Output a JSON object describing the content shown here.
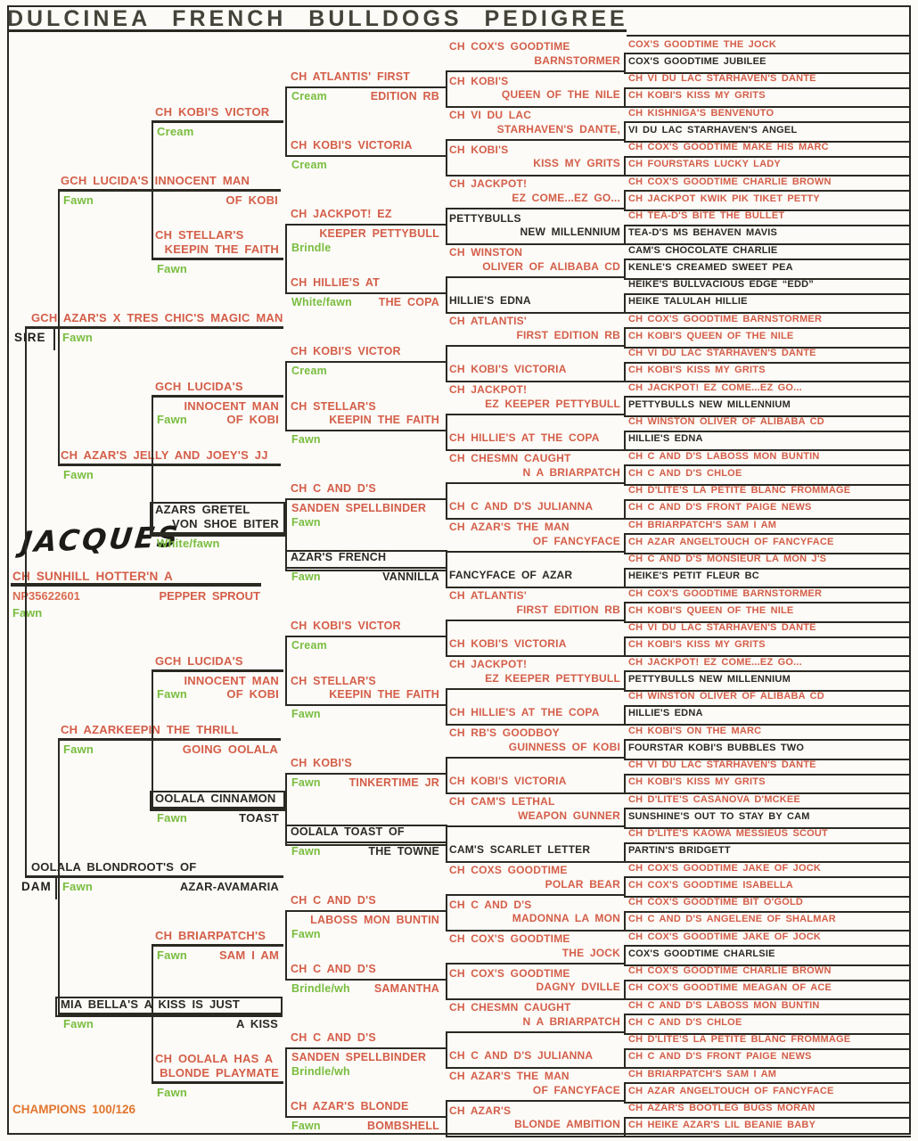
{
  "title": "DULCINEA FRENCH BULLDOGS PEDIGREE",
  "labels": {
    "sire": "SIRE",
    "dam": "DAM"
  },
  "subject": {
    "handwritten": "JACQUES",
    "name": "CH SUNHILL HOTTER'N A",
    "name2": "PEPPER SPROUT",
    "reg": "NP35622601",
    "color": "Fawn",
    "champions": "CHAMPIONS 100/126"
  },
  "gen1": [
    {
      "above": [
        "GCH AZAR'S X TRES CHIC'S MAGIC MAN"
      ],
      "below": [
        [
          {
            "t": "Fawn",
            "g": 1
          }
        ]
      ]
    },
    {
      "above": [
        "OOLALA BLONDROOT'S OF"
      ],
      "black": 1,
      "below": [
        [
          {
            "t": "Fawn",
            "g": 1
          },
          {
            "t": "AZAR-AVAMARIA",
            "r": 1,
            "k": 1
          }
        ]
      ]
    }
  ],
  "gen2": [
    {
      "above": [
        "GCH LUCIDA'S INNOCENT MAN"
      ],
      "below": [
        [
          {
            "t": "Fawn",
            "g": 1
          },
          {
            "t": "OF KOBI",
            "r": 1
          }
        ]
      ]
    },
    {
      "above": [
        "CH AZAR'S JELLY AND JOEY'S JJ"
      ],
      "below": [
        [
          {
            "t": "Fawn",
            "g": 1
          }
        ]
      ]
    },
    {
      "above": [
        "CH AZARKEEPIN THE THRILL"
      ],
      "below": [
        [
          {
            "t": "Fawn",
            "g": 1
          },
          {
            "t": "GOING OOLALA",
            "r": 1
          }
        ]
      ]
    },
    {
      "above": [
        "MIA BELLA'S A KISS IS JUST"
      ],
      "black": 1,
      "boxed": 1,
      "below": [
        [
          {
            "t": "Fawn",
            "g": 1
          },
          {
            "t": "A KISS",
            "r": 1,
            "k": 1
          }
        ]
      ]
    }
  ],
  "gen3": [
    {
      "above": [
        "CH KOBI'S VICTOR"
      ],
      "below": [
        [
          {
            "t": "Cream",
            "g": 1
          }
        ]
      ]
    },
    {
      "above": [
        "CH STELLAR'S",
        "KEEPIN THE FAITH"
      ],
      "below": [
        [
          {
            "t": "Fawn",
            "g": 1
          }
        ]
      ]
    },
    {
      "above": [
        "GCH LUCIDA'S"
      ],
      "below": [
        [
          {
            "t": "INNOCENT MAN",
            "r": 1
          }
        ],
        [
          {
            "t": "Fawn",
            "g": 1
          },
          {
            "t": "OF KOBI",
            "r": 1
          }
        ]
      ]
    },
    {
      "above": [
        "AZARS GRETEL",
        "VON SHOE BITER"
      ],
      "black": 1,
      "boxed": 1,
      "below": [
        [
          {
            "t": "White/fawn",
            "g": 1
          }
        ]
      ]
    },
    {
      "above": [
        "GCH LUCIDA'S"
      ],
      "below": [
        [
          {
            "t": "INNOCENT MAN",
            "r": 1
          }
        ],
        [
          {
            "t": "Fawn",
            "g": 1
          },
          {
            "t": "OF KOBI",
            "r": 1
          }
        ]
      ]
    },
    {
      "above": [
        "OOLALA CINNAMON"
      ],
      "black": 1,
      "boxed": 1,
      "below": [
        [
          {
            "t": "Fawn",
            "g": 1
          },
          {
            "t": "TOAST",
            "r": 1,
            "k": 1
          }
        ]
      ]
    },
    {
      "above": [
        "CH BRIARPATCH'S"
      ],
      "below": [
        [
          {
            "t": "Fawn",
            "g": 1
          },
          {
            "t": "SAM I AM",
            "r": 1
          }
        ]
      ]
    },
    {
      "above": [
        "CH OOLALA HAS A",
        "BLONDE PLAYMATE"
      ],
      "below": [
        [
          {
            "t": "Fawn",
            "g": 1
          }
        ]
      ]
    }
  ],
  "gen4": [
    {
      "above": [
        "CH ATLANTIS' FIRST"
      ],
      "below": [
        [
          {
            "t": "Cream",
            "g": 1
          },
          {
            "t": "EDITION RB",
            "r": 1
          }
        ]
      ]
    },
    {
      "above": [
        "CH KOBI'S VICTORIA"
      ],
      "below": [
        [
          {
            "t": "Cream",
            "g": 1
          }
        ]
      ]
    },
    {
      "above": [
        "CH JACKPOT! EZ"
      ],
      "below": [
        [
          {
            "t": "KEEPER PETTYBULL",
            "r": 1
          }
        ],
        [
          {
            "t": "Brindle",
            "g": 1
          }
        ]
      ]
    },
    {
      "above": [
        "CH HILLIE'S AT"
      ],
      "below": [
        [
          {
            "t": "White/fawn",
            "g": 1
          },
          {
            "t": "THE COPA",
            "r": 1
          }
        ]
      ]
    },
    {
      "above": [
        "CH KOBI'S VICTOR"
      ],
      "below": [
        [
          {
            "t": "Cream",
            "g": 1
          }
        ]
      ]
    },
    {
      "above": [
        "CH STELLAR'S",
        "KEEPIN THE FAITH"
      ],
      "below": [
        [
          {
            "t": "Fawn",
            "g": 1
          }
        ]
      ]
    },
    {
      "above": [
        "CH C AND D'S"
      ],
      "below": [
        [
          {
            "t": "SANDEN SPELLBINDER"
          }
        ],
        [
          {
            "t": "Fawn",
            "g": 1
          }
        ]
      ]
    },
    {
      "above": [
        "AZAR'S FRENCH"
      ],
      "black": 1,
      "boxed": 1,
      "below": [
        [
          {
            "t": "Fawn",
            "g": 1
          },
          {
            "t": "VANNILLA",
            "r": 1,
            "k": 1
          }
        ]
      ]
    },
    {
      "above": [
        "CH KOBI'S VICTOR"
      ],
      "below": [
        [
          {
            "t": "Cream",
            "g": 1
          }
        ]
      ]
    },
    {
      "above": [
        "CH STELLAR'S",
        "KEEPIN THE FAITH"
      ],
      "below": [
        [
          {
            "t": "Fawn",
            "g": 1
          }
        ]
      ]
    },
    {
      "above": [
        "CH KOBI'S"
      ],
      "below": [
        [
          {
            "t": "Fawn",
            "g": 1
          },
          {
            "t": "TINKERTIME JR",
            "r": 1
          }
        ]
      ]
    },
    {
      "above": [
        "OOLALA TOAST OF"
      ],
      "black": 1,
      "boxed": 1,
      "below": [
        [
          {
            "t": "Fawn",
            "g": 1
          },
          {
            "t": "THE TOWNE",
            "r": 1,
            "k": 1
          }
        ]
      ]
    },
    {
      "above": [
        "CH C AND D'S"
      ],
      "below": [
        [
          {
            "t": "LABOSS MON BUNTIN",
            "r": 1
          }
        ],
        [
          {
            "t": "Fawn",
            "g": 1
          }
        ]
      ]
    },
    {
      "above": [
        "CH C AND D'S"
      ],
      "below": [
        [
          {
            "t": "Brindle/wh",
            "g": 1
          },
          {
            "t": "SAMANTHA",
            "r": 1
          }
        ]
      ]
    },
    {
      "above": [
        "CH C AND D'S"
      ],
      "below": [
        [
          {
            "t": "SANDEN SPELLBINDER"
          }
        ],
        [
          {
            "t": "Brindle/wh",
            "g": 1
          }
        ]
      ]
    },
    {
      "above": [
        "CH AZAR'S BLONDE"
      ],
      "below": [
        [
          {
            "t": "Fawn",
            "g": 1
          },
          {
            "t": "BOMBSHELL",
            "r": 1
          }
        ]
      ]
    }
  ],
  "gen5": [
    {
      "l1": "CH COX'S GOODTIME",
      "l2": "BARNSTORMER"
    },
    {
      "l1": "CH KOBI'S",
      "l2": "QUEEN OF THE NILE"
    },
    {
      "l1": "CH VI DU LAC",
      "l2": "STARHAVEN'S DANTE,"
    },
    {
      "l1": "CH KOBI'S",
      "l2": "KISS MY GRITS"
    },
    {
      "l1": "CH JACKPOT!",
      "l2": "EZ COME...EZ GO..."
    },
    {
      "l1": "PETTYBULLS",
      "l2": "NEW MILLENNIUM",
      "black": 1
    },
    {
      "l1": "CH WINSTON",
      "l2": "OLIVER OF ALIBABA CD"
    },
    {
      "l1": "HILLIE'S EDNA",
      "black": 1
    },
    {
      "l1": "CH ATLANTIS'",
      "l2": "FIRST EDITION RB"
    },
    {
      "l1": "CH KOBI'S VICTORIA"
    },
    {
      "l1": "CH JACKPOT!",
      "l2": "EZ KEEPER PETTYBULL"
    },
    {
      "l1": "CH HILLIE'S AT THE COPA"
    },
    {
      "l1": "CH CHESMN CAUGHT",
      "l2": "N A BRIARPATCH"
    },
    {
      "l1": "CH C AND D'S JULIANNA"
    },
    {
      "l1": "CH AZAR'S THE MAN",
      "l2": "OF FANCYFACE"
    },
    {
      "l1": "FANCYFACE OF AZAR",
      "black": 1
    },
    {
      "l1": "CH ATLANTIS'",
      "l2": "FIRST EDITION RB"
    },
    {
      "l1": "CH KOBI'S VICTORIA"
    },
    {
      "l1": "CH JACKPOT!",
      "l2": "EZ KEEPER PETTYBULL"
    },
    {
      "l1": "CH HILLIE'S AT THE COPA"
    },
    {
      "l1": "CH RB'S GOODBOY",
      "l2": "GUINNESS OF KOBI"
    },
    {
      "l1": "CH KOBI'S VICTORIA"
    },
    {
      "l1": "CH CAM'S LETHAL",
      "l2": "WEAPON GUNNER"
    },
    {
      "l1": "CAM'S SCARLET LETTER",
      "black": 1
    },
    {
      "l1": "CH COXS GOODTIME",
      "l2": "POLAR BEAR"
    },
    {
      "l1": "CH C AND D'S",
      "l2": "MADONNA LA MON"
    },
    {
      "l1": "CH COX'S GOODTIME",
      "l2": "THE JOCK"
    },
    {
      "l1": "CH COX'S GOODTIME",
      "l2": "DAGNY DVILLE"
    },
    {
      "l1": "CH CHESMN CAUGHT",
      "l2": "N A BRIARPATCH"
    },
    {
      "l1": "CH C AND D'S JULIANNA"
    },
    {
      "l1": "CH AZAR'S THE MAN",
      "l2": "OF FANCYFACE"
    },
    {
      "l1": "CH AZAR'S",
      "l2": "BLONDE AMBITION"
    }
  ],
  "gen6": [
    {
      "n": "COX'S GOODTIME THE JOCK"
    },
    {
      "n": "COX'S GOODTIME JUBILEE",
      "black": 1
    },
    {
      "n": "CH VI DU LAC STARHAVEN'S DANTE"
    },
    {
      "n": "CH KOBI'S KISS MY GRITS"
    },
    {
      "n": "CH KISHNIGA'S BENVENUTO"
    },
    {
      "n": "VI DU LAC STARHAVEN'S ANGEL",
      "black": 1
    },
    {
      "n": "CH COX'S GOODTIME MAKE HIS MARC"
    },
    {
      "n": "CH FOURSTARS LUCKY LADY"
    },
    {
      "n": "CH COX'S GOODTIME CHARLIE BROWN"
    },
    {
      "n": "CH JACKPOT KWIK PIK TIKET PETTY"
    },
    {
      "n": "CH TEA-D'S BITE THE BULLET"
    },
    {
      "n": "TEA-D'S MS BEHAVEN MAVIS",
      "black": 1
    },
    {
      "n": "CAM'S CHOCOLATE CHARLIE",
      "black": 1
    },
    {
      "n": "KENLE'S CREAMED SWEET PEA",
      "black": 1
    },
    {
      "n": "HEIKE'S BULLVACIOUS EDGE “EDD”",
      "black": 1
    },
    {
      "n": "HEIKE TALULAH HILLIE",
      "black": 1
    },
    {
      "n": "CH COX'S GOODTIME BARNSTORMER"
    },
    {
      "n": "CH KOBI'S QUEEN OF THE NILE"
    },
    {
      "n": "CH VI DU LAC STARHAVEN'S DANTE"
    },
    {
      "n": "CH KOBI'S KISS MY GRITS"
    },
    {
      "n": "CH JACKPOT! EZ COME...EZ GO..."
    },
    {
      "n": "PETTYBULLS NEW MILLENNIUM",
      "black": 1
    },
    {
      "n": "CH WINSTON OLIVER OF ALIBABA CD"
    },
    {
      "n": "HILLIE'S EDNA",
      "black": 1
    },
    {
      "n": "CH C AND D'S LABOSS MON BUNTIN"
    },
    {
      "n": "CH C AND D'S CHLOE"
    },
    {
      "n": "CH D'LITE'S LA PETITE BLANC FROMMAGE"
    },
    {
      "n": "CH C AND D'S FRONT PAIGE NEWS"
    },
    {
      "n": "CH BRIARPATCH'S SAM I AM"
    },
    {
      "n": "CH AZAR ANGELTOUCH OF FANCYFACE"
    },
    {
      "n": "CH C AND D'S MONSIEUR LA MON J'S"
    },
    {
      "n": "HEIKE'S PETIT FLEUR BC",
      "black": 1
    },
    {
      "n": "CH COX'S GOODTIME BARNSTORMER"
    },
    {
      "n": "CH KOBI'S QUEEN OF THE NILE"
    },
    {
      "n": "CH VI DU LAC STARHAVEN'S DANTE"
    },
    {
      "n": "CH KOBI'S KISS MY GRITS"
    },
    {
      "n": "CH JACKPOT! EZ COME...EZ GO..."
    },
    {
      "n": "PETTYBULLS NEW MILLENNIUM",
      "black": 1
    },
    {
      "n": "CH WINSTON OLIVER OF ALIBABA CD"
    },
    {
      "n": "HILLIE'S EDNA",
      "black": 1
    },
    {
      "n": "CH KOBI'S ON THE MARC"
    },
    {
      "n": "FOURSTAR KOBI'S BUBBLES TWO",
      "black": 1
    },
    {
      "n": "CH VI DU LAC STARHAVEN'S DANTE"
    },
    {
      "n": "CH KOBI'S KISS MY GRITS"
    },
    {
      "n": "CH D'LITE'S CASANOVA D'MCKEE"
    },
    {
      "n": "SUNSHINE'S OUT TO STAY BY CAM",
      "black": 1
    },
    {
      "n": "CH D'LITE'S KAOWA MESSIEUS SCOUT"
    },
    {
      "n": "PARTIN'S BRIDGETT",
      "black": 1
    },
    {
      "n": "CH COX'S GOODTIME JAKE OF JOCK"
    },
    {
      "n": "CH COX'S GOODTIME ISABELLA"
    },
    {
      "n": "CH COX'S GOODTIME BIT O'GOLD"
    },
    {
      "n": "CH C AND D'S ANGELENE OF SHALMAR"
    },
    {
      "n": "CH COX'S GOODTIME JAKE OF JOCK"
    },
    {
      "n": "COX'S GOODTIME CHARLSIE",
      "black": 1
    },
    {
      "n": "CH COX'S GOODTIME CHARLIE BROWN"
    },
    {
      "n": "CH COX'S GOODTIME MEAGAN OF ACE"
    },
    {
      "n": "CH C AND D'S LABOSS MON BUNTIN"
    },
    {
      "n": "CH C AND D'S CHLOE"
    },
    {
      "n": "CH D'LITE'S LA PETITE BLANC FROMMAGE"
    },
    {
      "n": "CH C AND D'S FRONT PAIGE NEWS"
    },
    {
      "n": "CH BRIARPATCH'S SAM I AM"
    },
    {
      "n": "CH AZAR ANGELTOUCH OF FANCYFACE"
    },
    {
      "n": "CH AZAR'S BOOTLEG BUGS MORAN"
    },
    {
      "n": "CH HEIKE AZAR'S LIL BEANIE BABY"
    }
  ]
}
